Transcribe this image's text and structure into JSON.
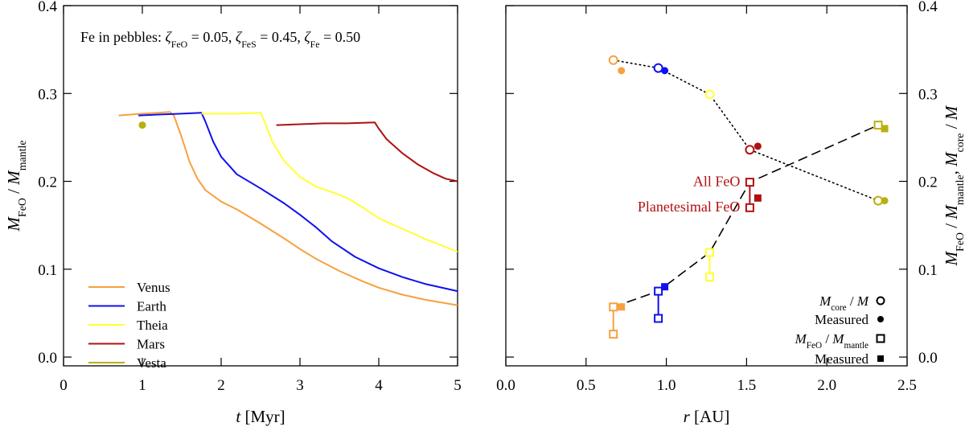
{
  "chart_data": [
    {
      "type": "line",
      "panel": "left",
      "annotation": {
        "prefix": "Fe in pebbles: ",
        "terms": [
          {
            "sym": "ζ",
            "sub": "FeO",
            "val": " = 0.05"
          },
          {
            "sym": "ζ",
            "sub": "FeS",
            "val": " = 0.45"
          },
          {
            "sym": "ζ",
            "sub": "Fe",
            "val": " = 0.50"
          }
        ],
        "separator": ", "
      },
      "xlabel": {
        "italic": "t",
        "rest": " [Myr]"
      },
      "ylabel": {
        "parts": [
          {
            "t": "M",
            "italic": true
          },
          {
            "t": "FeO",
            "sub": true
          },
          {
            "t": " / "
          },
          {
            "t": "M",
            "italic": true
          },
          {
            "t": "mantle",
            "sub": true
          }
        ]
      },
      "xlim": [
        0,
        5
      ],
      "ylim": [
        -0.01,
        0.4
      ],
      "xticks": [
        0,
        1,
        2,
        3,
        4,
        5
      ],
      "xtick_labels": [
        "0",
        "1",
        "2",
        "3",
        "4",
        "5"
      ],
      "yticks": [
        0.0,
        0.1,
        0.2,
        0.3,
        0.4
      ],
      "ytick_labels": [
        "0.0",
        "0.1",
        "0.2",
        "0.3",
        "0.4"
      ],
      "series": [
        {
          "name": "Venus",
          "color": "#f7a040",
          "x": [
            0.7,
            1.0,
            1.2,
            1.35,
            1.4,
            1.5,
            1.6,
            1.7,
            1.8,
            2.0,
            2.2,
            2.5,
            2.8,
            3.0,
            3.2,
            3.5,
            3.8,
            4.0,
            4.3,
            4.6,
            5.0
          ],
          "y": [
            0.275,
            0.277,
            0.278,
            0.279,
            0.275,
            0.25,
            0.222,
            0.203,
            0.19,
            0.177,
            0.168,
            0.152,
            0.135,
            0.123,
            0.112,
            0.098,
            0.086,
            0.079,
            0.071,
            0.065,
            0.059
          ]
        },
        {
          "name": "Earth",
          "color": "#1010f0",
          "x": [
            0.95,
            1.2,
            1.5,
            1.75,
            1.8,
            1.9,
            2.0,
            2.2,
            2.5,
            2.8,
            3.0,
            3.2,
            3.4,
            3.7,
            4.0,
            4.3,
            4.6,
            5.0
          ],
          "y": [
            0.275,
            0.276,
            0.277,
            0.278,
            0.268,
            0.245,
            0.228,
            0.208,
            0.192,
            0.175,
            0.162,
            0.148,
            0.132,
            0.114,
            0.101,
            0.091,
            0.083,
            0.075
          ]
        },
        {
          "name": "Theia",
          "color": "#ffff33",
          "x": [
            1.75,
            2.0,
            2.2,
            2.5,
            2.55,
            2.65,
            2.8,
            3.0,
            3.2,
            3.4,
            3.6,
            3.8,
            4.0,
            4.3,
            4.6,
            5.0
          ],
          "y": [
            0.277,
            0.277,
            0.277,
            0.278,
            0.268,
            0.245,
            0.223,
            0.205,
            0.194,
            0.188,
            0.181,
            0.17,
            0.158,
            0.146,
            0.134,
            0.12
          ]
        },
        {
          "name": "Mars",
          "color": "#b01010",
          "x": [
            2.7,
            3.0,
            3.3,
            3.6,
            3.95,
            4.0,
            4.1,
            4.3,
            4.5,
            4.7,
            4.85,
            5.0
          ],
          "y": [
            0.264,
            0.265,
            0.266,
            0.266,
            0.267,
            0.26,
            0.248,
            0.232,
            0.219,
            0.209,
            0.203,
            0.2
          ]
        },
        {
          "name": "Vesta",
          "color": "#b8b010",
          "x": [],
          "y": []
        }
      ],
      "points": [
        {
          "name": "Vesta",
          "x": 1.0,
          "y": 0.264,
          "color": "#b8b010",
          "marker": "filled-circle"
        }
      ],
      "legend": {
        "placement": "lower-left",
        "entries": [
          {
            "label": "Venus",
            "color": "#f7a040"
          },
          {
            "label": "Earth",
            "color": "#1010f0"
          },
          {
            "label": "Theia",
            "color": "#ffff33"
          },
          {
            "label": "Mars",
            "color": "#b01010"
          },
          {
            "label": "Vesta",
            "color": "#b8b010"
          }
        ]
      }
    },
    {
      "type": "scatter",
      "panel": "right",
      "xlabel": {
        "italic": "r",
        "rest": " [AU]"
      },
      "ylabel": {
        "parts": [
          {
            "t": "M",
            "italic": true
          },
          {
            "t": "FeO",
            "sub": true
          },
          {
            "t": " / "
          },
          {
            "t": "M",
            "italic": true
          },
          {
            "t": "mantle",
            "sub": true
          },
          {
            "t": ", "
          },
          {
            "t": "M",
            "italic": true
          },
          {
            "t": "core",
            "sub": true
          },
          {
            "t": " / "
          },
          {
            "t": "M",
            "italic": true
          }
        ]
      },
      "xlim": [
        0,
        2.5
      ],
      "ylim": [
        -0.01,
        0.4
      ],
      "xticks": [
        0.0,
        0.5,
        1.0,
        1.5,
        2.0,
        2.5
      ],
      "xtick_labels": [
        "0.0",
        "0.5",
        "1.0",
        "1.5",
        "2.0",
        "2.5"
      ],
      "yticks": [
        0.0,
        0.1,
        0.2,
        0.3,
        0.4
      ],
      "ytick_labels": [
        "0.0",
        "0.1",
        "0.2",
        "0.3",
        "0.4"
      ],
      "core_model": [
        {
          "name": "Venus",
          "x": 0.67,
          "y": 0.338,
          "color": "#f7a040"
        },
        {
          "name": "Earth",
          "x": 0.95,
          "y": 0.329,
          "color": "#1010f0"
        },
        {
          "name": "Theia",
          "x": 1.27,
          "y": 0.299,
          "color": "#ffff33"
        },
        {
          "name": "Mars",
          "x": 1.52,
          "y": 0.236,
          "color": "#b01010"
        },
        {
          "name": "Vesta",
          "x": 2.32,
          "y": 0.178,
          "color": "#b8b010"
        }
      ],
      "core_measured": [
        {
          "name": "Venus",
          "x": 0.72,
          "y": 0.326,
          "color": "#f7a040"
        },
        {
          "name": "Earth",
          "x": 0.99,
          "y": 0.326,
          "color": "#1010f0"
        },
        {
          "name": "Mars",
          "x": 1.57,
          "y": 0.24,
          "color": "#b01010"
        },
        {
          "name": "Vesta",
          "x": 2.36,
          "y": 0.178,
          "color": "#b8b010"
        }
      ],
      "feo_all": [
        {
          "name": "Venus",
          "x": 0.67,
          "y": 0.057,
          "color": "#f7a040"
        },
        {
          "name": "Earth",
          "x": 0.95,
          "y": 0.075,
          "color": "#1010f0"
        },
        {
          "name": "Theia",
          "x": 1.27,
          "y": 0.119,
          "color": "#ffff33"
        },
        {
          "name": "Mars",
          "x": 1.52,
          "y": 0.199,
          "color": "#b01010"
        },
        {
          "name": "Vesta",
          "x": 2.32,
          "y": 0.264,
          "color": "#b8b010"
        }
      ],
      "feo_planetesimal": [
        {
          "name": "Venus",
          "x": 0.67,
          "y": 0.026,
          "color": "#f7a040"
        },
        {
          "name": "Earth",
          "x": 0.95,
          "y": 0.044,
          "color": "#1010f0"
        },
        {
          "name": "Theia",
          "x": 1.27,
          "y": 0.091,
          "color": "#ffff33"
        },
        {
          "name": "Mars",
          "x": 1.52,
          "y": 0.17,
          "color": "#b01010"
        }
      ],
      "feo_measured": [
        {
          "name": "Venus",
          "x": 0.72,
          "y": 0.057,
          "color": "#f7a040"
        },
        {
          "name": "Earth",
          "x": 0.99,
          "y": 0.08,
          "color": "#1010f0"
        },
        {
          "name": "Mars",
          "x": 1.57,
          "y": 0.181,
          "color": "#b01010"
        },
        {
          "name": "Vesta",
          "x": 2.36,
          "y": 0.26,
          "color": "#b8b010"
        }
      ],
      "annotations": [
        {
          "text": "All FeO",
          "color": "#b01010",
          "x": 1.5,
          "y": 0.2
        },
        {
          "text": "Planetesimal FeO",
          "color": "#b01010",
          "x": 1.5,
          "y": 0.171
        }
      ],
      "legend": {
        "placement": "lower-right",
        "entries": [
          {
            "parts": [
              {
                "t": "M",
                "italic": true
              },
              {
                "t": "core",
                "sub": true
              },
              {
                "t": " / "
              },
              {
                "t": "M",
                "italic": true
              }
            ],
            "marker": "open-circle"
          },
          {
            "parts": [
              {
                "t": "Measured"
              }
            ],
            "marker": "filled-circle"
          },
          {
            "parts": [
              {
                "t": "M",
                "italic": true
              },
              {
                "t": "FeO",
                "sub": true
              },
              {
                "t": " / "
              },
              {
                "t": "M",
                "italic": true
              },
              {
                "t": "mantle",
                "sub": true
              }
            ],
            "marker": "open-square"
          },
          {
            "parts": [
              {
                "t": "Measured"
              }
            ],
            "marker": "filled-square"
          }
        ]
      }
    }
  ]
}
